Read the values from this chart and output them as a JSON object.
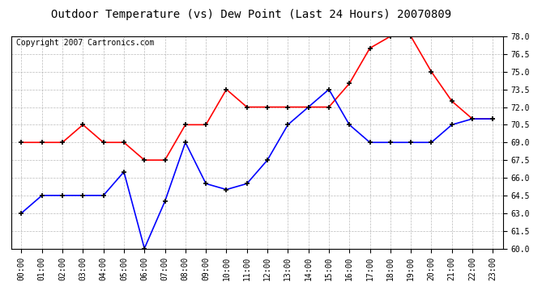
{
  "title": "Outdoor Temperature (vs) Dew Point (Last 24 Hours) 20070809",
  "copyright_text": "Copyright 2007 Cartronics.com",
  "hours": [
    "00:00",
    "01:00",
    "02:00",
    "03:00",
    "04:00",
    "05:00",
    "06:00",
    "07:00",
    "08:00",
    "09:00",
    "10:00",
    "11:00",
    "12:00",
    "13:00",
    "14:00",
    "15:00",
    "16:00",
    "17:00",
    "18:00",
    "19:00",
    "20:00",
    "21:00",
    "22:00",
    "23:00"
  ],
  "temp_red": [
    69.0,
    69.0,
    69.0,
    70.5,
    69.0,
    69.0,
    67.5,
    67.5,
    70.5,
    70.5,
    73.5,
    72.0,
    72.0,
    72.0,
    72.0,
    72.0,
    74.0,
    77.0,
    78.0,
    78.0,
    75.0,
    72.5,
    71.0,
    71.0
  ],
  "dew_blue": [
    63.0,
    64.5,
    64.5,
    64.5,
    64.5,
    66.5,
    60.0,
    64.0,
    69.0,
    65.5,
    65.0,
    65.5,
    67.5,
    70.5,
    72.0,
    73.5,
    70.5,
    69.0,
    69.0,
    69.0,
    69.0,
    70.5,
    71.0,
    71.0
  ],
  "ylim": [
    60.0,
    78.0
  ],
  "yticks": [
    60.0,
    61.5,
    63.0,
    64.5,
    66.0,
    67.5,
    69.0,
    70.5,
    72.0,
    73.5,
    75.0,
    76.5,
    78.0
  ],
  "red_color": "#FF0000",
  "blue_color": "#0000FF",
  "bg_color": "#FFFFFF",
  "grid_color": "#AAAAAA",
  "title_fontsize": 10,
  "copyright_fontsize": 7,
  "tick_fontsize": 7,
  "line_width": 1.2,
  "marker_size": 5
}
